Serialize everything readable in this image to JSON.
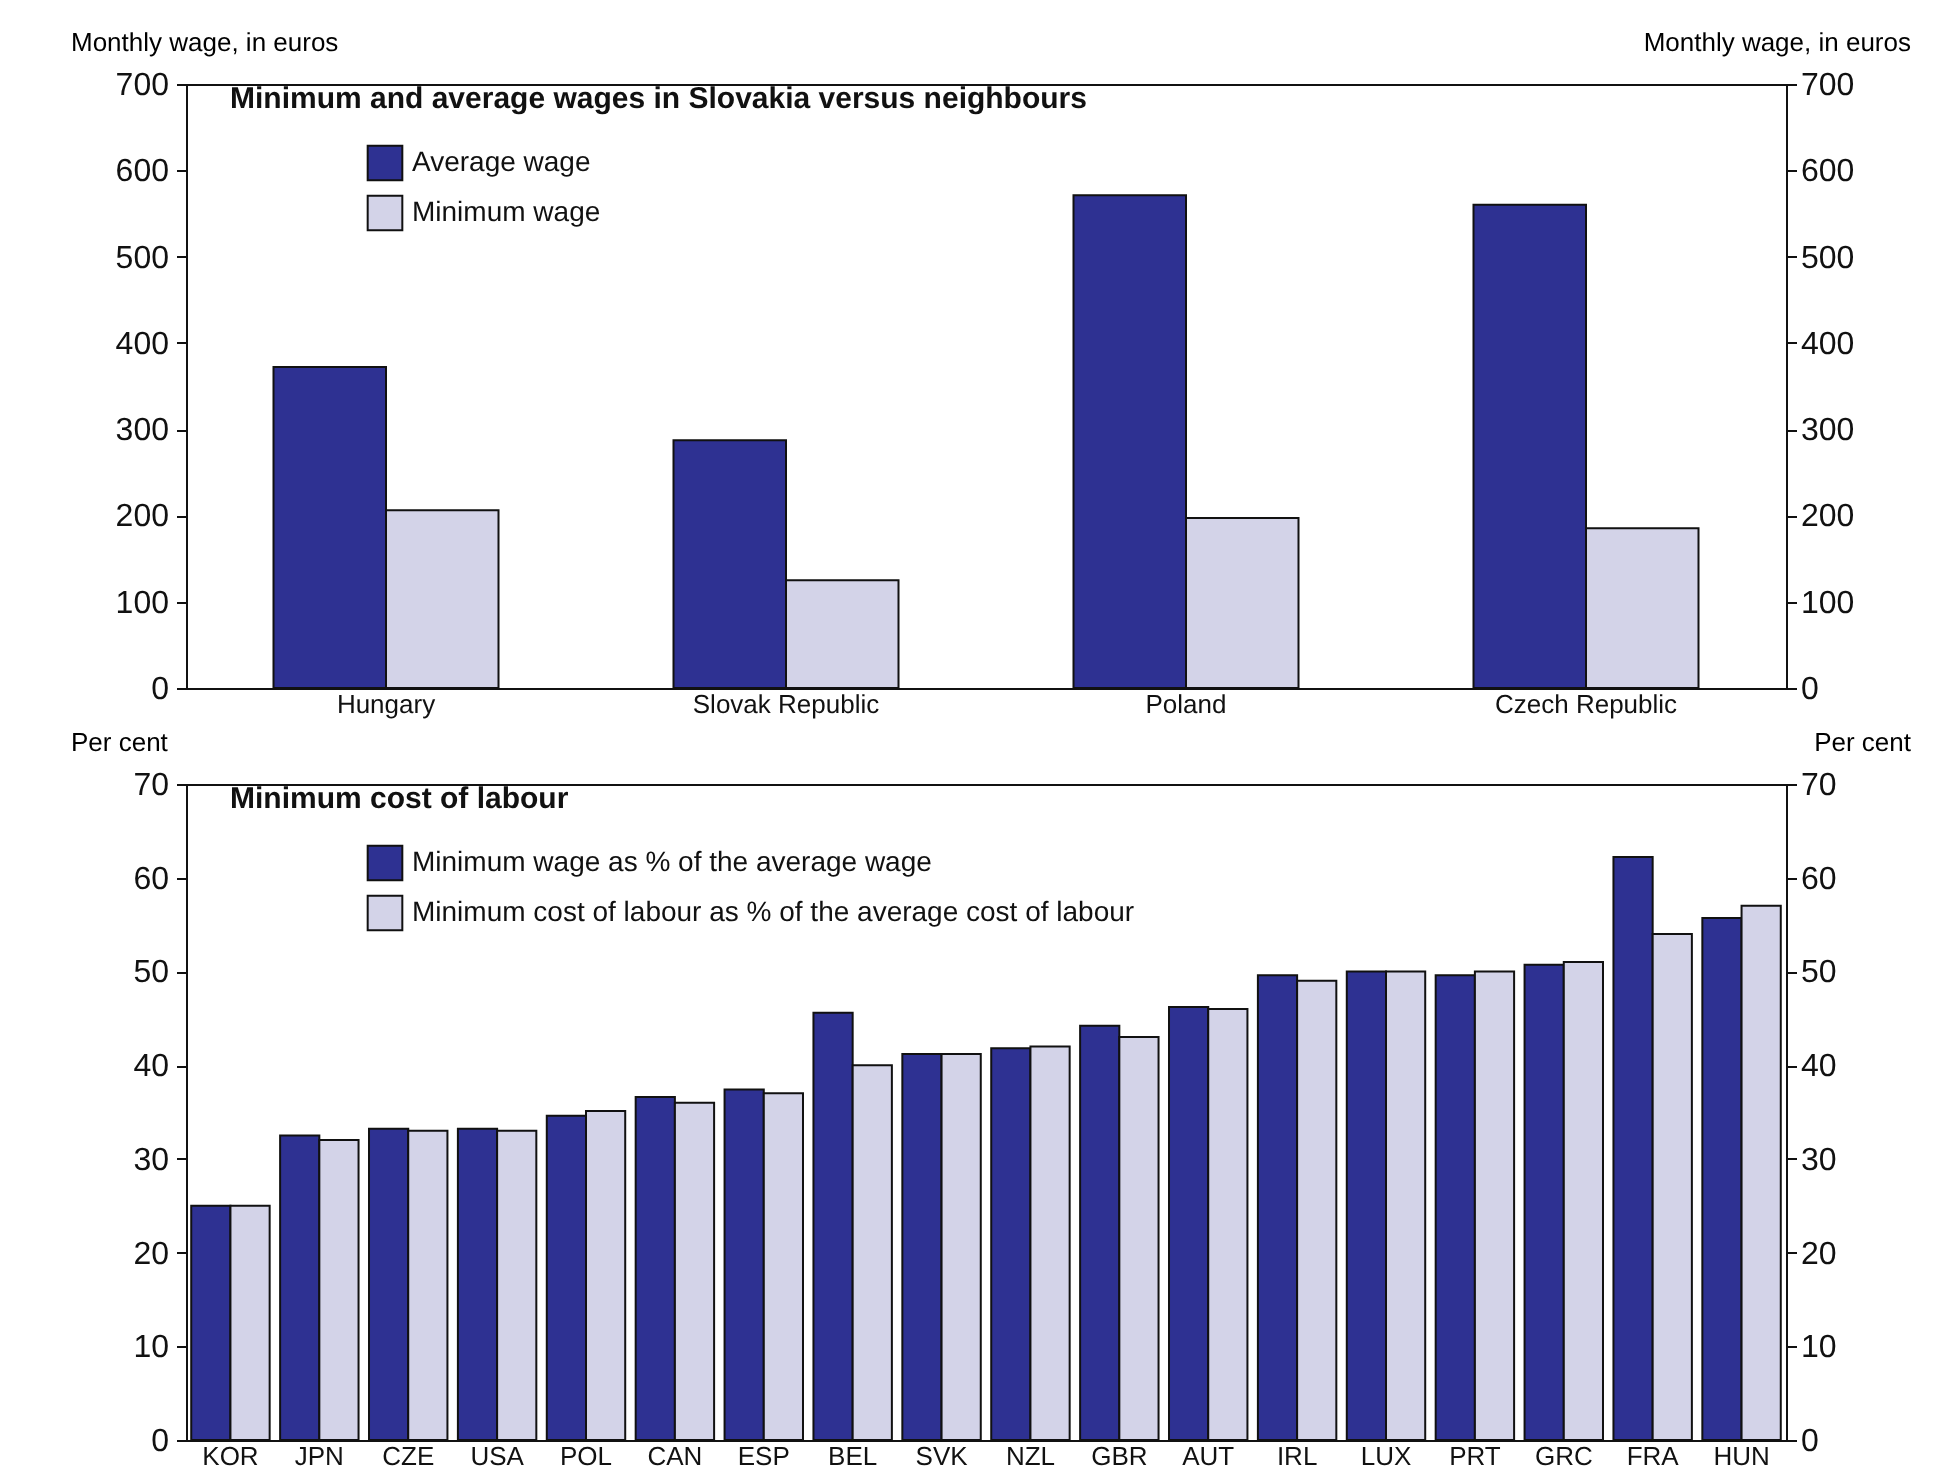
{
  "chart_data": [
    {
      "type": "bar",
      "title": "Minimum and average wages in Slovakia versus neighbours",
      "ylabel": "Monthly wage, in euros",
      "y2label": "Monthly wage, in euros",
      "categories": [
        "Hungary",
        "Slovak Republic",
        "Poland",
        "Czech Republic"
      ],
      "series": [
        {
          "name": "Average wage",
          "color": "#2e3192",
          "values": [
            372,
            287,
            571,
            560
          ]
        },
        {
          "name": "Minimum wage",
          "color": "#d3d3e8",
          "values": [
            206,
            125,
            197,
            185
          ]
        }
      ],
      "ylim": [
        0,
        700
      ],
      "yticks": [
        0,
        100,
        200,
        300,
        400,
        500,
        600,
        700
      ],
      "y2lim": [
        0,
        700
      ],
      "y2ticks": [
        0,
        100,
        200,
        300,
        400,
        500,
        600,
        700
      ],
      "grid": false,
      "legend": "top left"
    },
    {
      "type": "bar",
      "title": "Minimum cost of labour",
      "ylabel": "Per cent",
      "y2label": "Per cent",
      "categories": [
        "KOR",
        "JPN",
        "CZE",
        "USA",
        "POL",
        "CAN",
        "ESP",
        "BEL",
        "SVK",
        "NZL",
        "GBR",
        "AUT",
        "IRL",
        "LUX",
        "PRT",
        "GRC",
        "FRA",
        "HUN"
      ],
      "series": [
        {
          "name": "Minimum wage as % of the average wage",
          "color": "#2e3192",
          "values": [
            25,
            32.5,
            33.2,
            33.2,
            34.6,
            36.6,
            37.4,
            45.6,
            41.2,
            41.8,
            44.2,
            46.2,
            49.6,
            50,
            49.6,
            50.7,
            62.2,
            55.7
          ]
        },
        {
          "name": "Minimum cost of labour as % of the average cost of labour",
          "color": "#d3d3e8",
          "values": [
            25,
            32,
            33,
            33,
            35.1,
            36,
            37,
            40,
            41.2,
            42,
            43,
            46,
            49,
            50,
            50,
            51,
            54,
            57
          ]
        }
      ],
      "ylim": [
        0,
        70
      ],
      "yticks": [
        0,
        10,
        20,
        30,
        40,
        50,
        60,
        70
      ],
      "y2lim": [
        0,
        70
      ],
      "y2ticks": [
        0,
        10,
        20,
        30,
        40,
        50,
        60,
        70
      ],
      "grid": false,
      "legend": "top left"
    }
  ]
}
